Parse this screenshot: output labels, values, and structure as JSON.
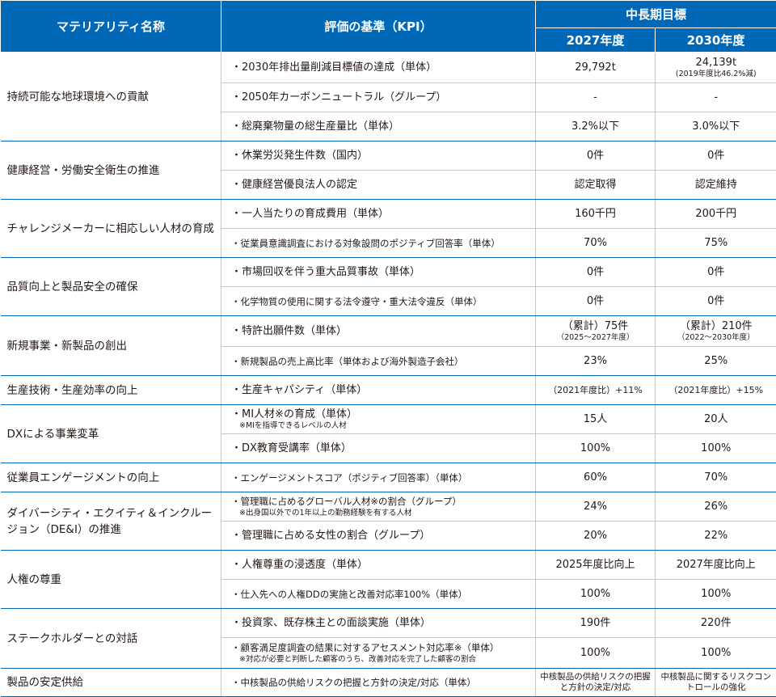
{
  "header": {
    "materiality": "マテリアリティ名称",
    "kpi": "評価の基準（KPI）",
    "target": "中長期目標",
    "y2027": "2027年度",
    "y2030": "2030年度"
  },
  "groups": [
    {
      "name": "持続可能な地球環境への貢献",
      "rows": [
        {
          "kpi": "・2030年排出量削減目標値の達成（単体）",
          "v2027": "29,792t",
          "v2030": "24,139t",
          "v2030_note": "(2019年度比46.2%減)"
        },
        {
          "kpi": "・2050年カーボンニュートラル（グループ）",
          "v2027": "-",
          "v2030": "-"
        },
        {
          "kpi": "・総廃棄物量の総生産量比（単体）",
          "v2027": "3.2%以下",
          "v2030": "3.0%以下"
        }
      ]
    },
    {
      "name": "健康経営・労働安全衛生の推進",
      "rows": [
        {
          "kpi": "・休業労災発生件数（国内）",
          "v2027": "0件",
          "v2030": "0件"
        },
        {
          "kpi": "・健康経営優良法人の認定",
          "v2027": "認定取得",
          "v2030": "認定維持"
        }
      ]
    },
    {
      "name": "チャレンジメーカーに相応しい人材の育成",
      "rows": [
        {
          "kpi": "・一人当たりの育成費用（単体）",
          "v2027": "160千円",
          "v2030": "200千円"
        },
        {
          "kpi": "・従業員意識調査における対象設問のポジティブ回答率（単体）",
          "v2027": "70%",
          "v2030": "75%"
        }
      ]
    },
    {
      "name": "品質向上と製品安全の確保",
      "rows": [
        {
          "kpi": "・市場回収を伴う重大品質事故（単体）",
          "v2027": "0件",
          "v2030": "0件"
        },
        {
          "kpi": "・化学物質の使用に関する法令遵守・重大法令違反（単体）",
          "v2027": "0件",
          "v2030": "0件"
        }
      ]
    },
    {
      "name": "新規事業・新製品の創出",
      "rows": [
        {
          "kpi": "・特許出願件数（単体）",
          "v2027": "（累計）75件",
          "v2027_note": "（2025～2027年度）",
          "v2030": "（累計）210件",
          "v2030_note": "（2022～2030年度）"
        },
        {
          "kpi": "・新規製品の売上高比率（単体および海外製造子会社）",
          "v2027": "23%",
          "v2030": "25%"
        }
      ]
    },
    {
      "name": "生産技術・生産効率の向上",
      "rows": [
        {
          "kpi": "・生産キャパシティ（単体）",
          "v2027": "（2021年度比）+11%",
          "v2030": "（2021年度比）+15%"
        }
      ]
    },
    {
      "name": "DXによる事業変革",
      "rows": [
        {
          "kpi": "・MI人材※の育成（単体）",
          "kpi_note": "※MIを指導できるレベルの人材",
          "v2027": "15人",
          "v2030": "20人"
        },
        {
          "kpi": "・DX教育受講率（単体）",
          "v2027": "100%",
          "v2030": "100%"
        }
      ]
    },
    {
      "name": "従業員エンゲージメントの向上",
      "rows": [
        {
          "kpi": "・エンゲージメントスコア（ポジティブ回答率）（単体）",
          "v2027": "60%",
          "v2030": "70%"
        }
      ]
    },
    {
      "name": "ダイバーシティ・エクイティ＆インクルージョン（DE&I）の推進",
      "rows": [
        {
          "kpi": "・管理職に占めるグローバル人材※の割合（グループ）",
          "kpi_note": "※出身国以外での1年以上の勤務経験を有する人材",
          "v2027": "24%",
          "v2030": "26%"
        },
        {
          "kpi": "・管理職に占める女性の割合（グループ）",
          "v2027": "20%",
          "v2030": "22%"
        }
      ]
    },
    {
      "name": "人権の尊重",
      "rows": [
        {
          "kpi": "・人権尊重の浸透度（単体）",
          "v2027": "2025年度比向上",
          "v2030": "2027年度比向上"
        },
        {
          "kpi": "・仕入先への人権DDの実施と改善対応率100%（単体）",
          "v2027": "100%",
          "v2030": "100%"
        }
      ]
    },
    {
      "name": "ステークホルダーとの対話",
      "rows": [
        {
          "kpi": "・投資家、既存株主との面談実施（単体）",
          "v2027": "190件",
          "v2030": "220件"
        },
        {
          "kpi": "・顧客満足度調査の結果に対するアセスメント対応率※（単体）",
          "kpi_note": "※対応が必要と判断した顧客のうち、改善対応を完了した顧客の割合",
          "v2027": "100%",
          "v2030": "100%"
        }
      ]
    },
    {
      "name": "製品の安定供給",
      "rows": [
        {
          "kpi": "・中核製品の供給リスクの把握と方針の決定/対応（単体）",
          "v2027": "中核製品の供給リスクの把握と方針の決定/対応",
          "v2030": "中核製品に関するリスクコントロールの強化"
        }
      ]
    }
  ]
}
